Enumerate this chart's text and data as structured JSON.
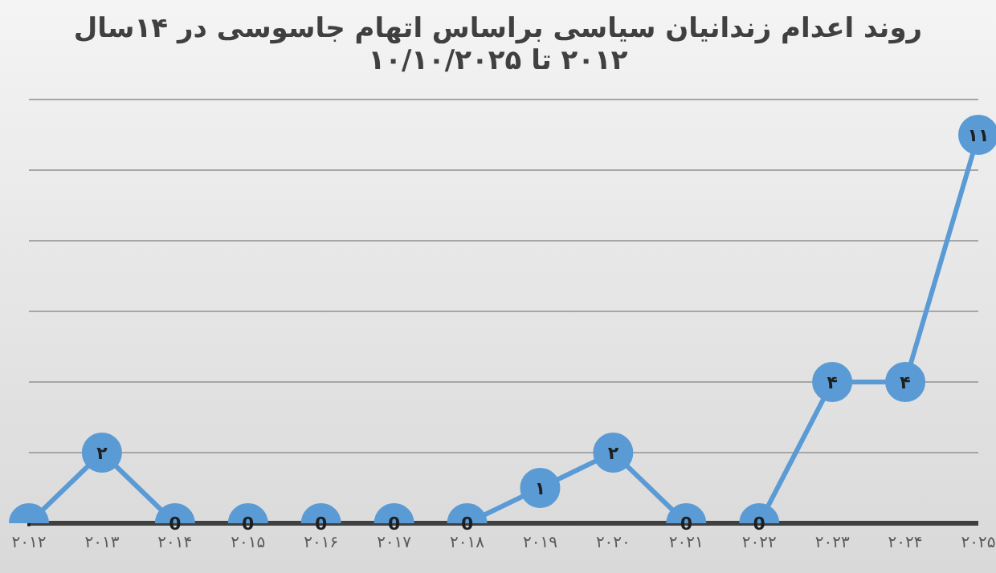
{
  "chart_data": {
    "type": "line",
    "title": "روند اعدام زندانیان سیاسی براساس اتهام جاسوسی در ۱۴سال",
    "subtitle": "۲۰۱۲ تا ۱۰/۱۰/۲۰۲۵",
    "categories": [
      "۲۰۱۲",
      "۲۰۱۳",
      "۲۰۱۴",
      "۲۰۱۵",
      "۲۰۱۶",
      "۲۰۱۷",
      "۲۰۱۸",
      "۲۰۱۹",
      "۲۰۲۰",
      "۲۰۲۱",
      "۲۰۲۲",
      "۲۰۲۳",
      "۲۰۲۴",
      "۲۰۲۵"
    ],
    "series": [
      {
        "color": "#5b9bd5",
        "values": [
          0,
          2,
          0,
          0,
          0,
          0,
          0,
          1,
          2,
          0,
          0,
          4,
          4,
          11
        ],
        "value_labels": [
          "۰",
          "۲",
          "0",
          "0",
          "0",
          "0",
          "0",
          "۱",
          "۲",
          "0",
          "0",
          "۴",
          "۴",
          "۱۱"
        ]
      }
    ],
    "ylim": [
      0,
      12
    ],
    "yticks": [
      {
        "value": 0,
        "label": null
      },
      {
        "value": 2,
        "label": null
      },
      {
        "value": 4,
        "label": null
      },
      {
        "value": 6,
        "label": null
      },
      {
        "value": 8,
        "label": null
      },
      {
        "value": 10,
        "label": null
      },
      {
        "value": 12,
        "label": null
      }
    ],
    "tick_labels": "x",
    "grid": "y",
    "marker": "circle",
    "line_style": "solid"
  }
}
